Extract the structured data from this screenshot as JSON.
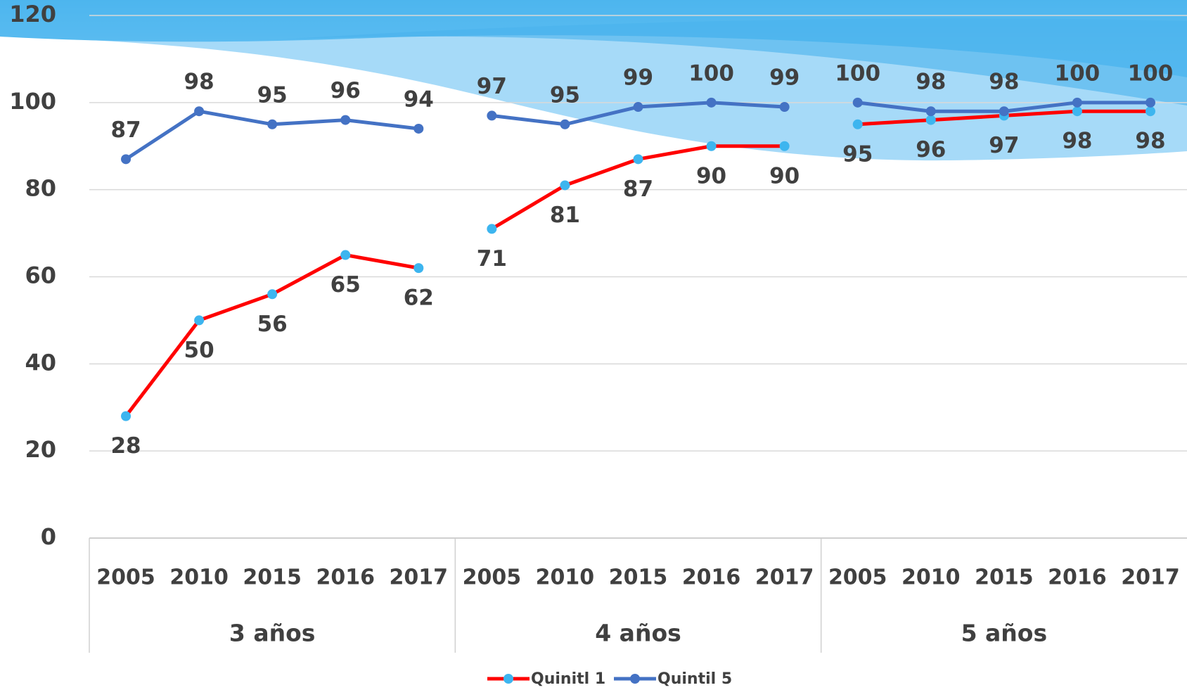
{
  "chart_data": {
    "type": "line",
    "groups": [
      "3 años",
      "4 años",
      "5 años"
    ],
    "categories": [
      "2005",
      "2010",
      "2015",
      "2016",
      "2017",
      "2005",
      "2010",
      "2015",
      "2016",
      "2017",
      "2005",
      "2010",
      "2015",
      "2016",
      "2017"
    ],
    "series": [
      {
        "name": "Quinitl 1",
        "color": "#ff0000",
        "marker_color": "#3db5ef",
        "values": [
          28,
          50,
          56,
          65,
          62,
          71,
          81,
          87,
          90,
          90,
          95,
          96,
          97,
          98,
          98
        ]
      },
      {
        "name": "Quintil 5",
        "color": "#4472c4",
        "marker_color": "#4472c4",
        "values": [
          87,
          98,
          95,
          96,
          94,
          97,
          95,
          99,
          100,
          99,
          100,
          98,
          98,
          100,
          100
        ]
      }
    ],
    "ylim": [
      0,
      120
    ],
    "yticks": [
      0,
      20,
      40,
      60,
      80,
      100,
      120
    ],
    "grid": true,
    "legend": "bottom"
  }
}
